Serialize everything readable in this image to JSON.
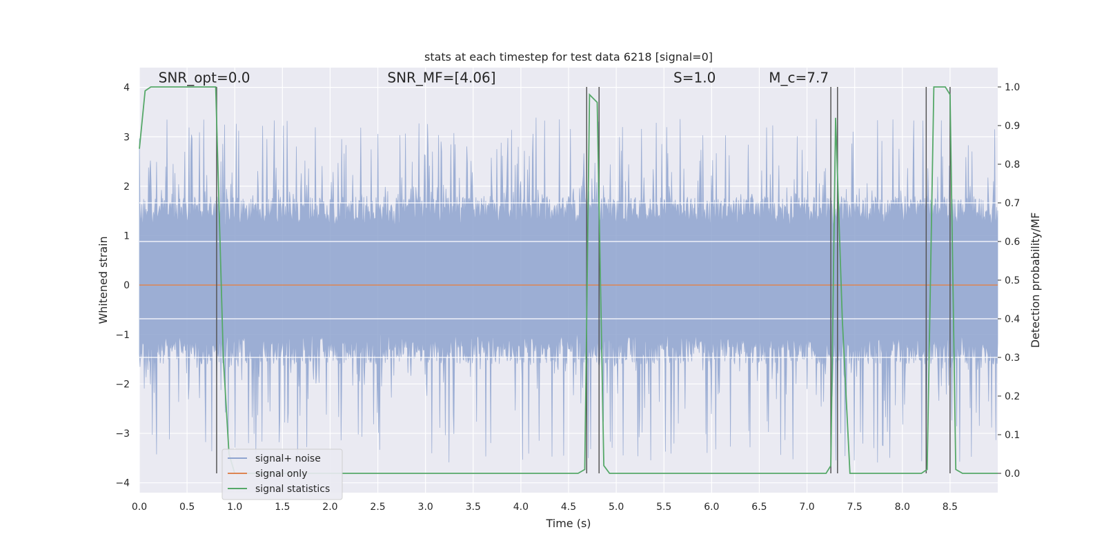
{
  "chart_data": {
    "type": "line",
    "title": "stats at each timestep for test data 6218 [signal=0]",
    "xlabel": "Time (s)",
    "ylabel_left": "Whitened strain",
    "ylabel_right": "Detection probability/MF",
    "xlim": [
      0.0,
      9.0
    ],
    "ylim_left": [
      -4.2,
      4.4
    ],
    "ylim_right": [
      -0.05,
      1.05
    ],
    "x_ticks": [
      "0.0",
      "0.5",
      "1.0",
      "1.5",
      "2.0",
      "2.5",
      "3.0",
      "3.5",
      "4.0",
      "4.5",
      "5.0",
      "5.5",
      "6.0",
      "6.5",
      "7.0",
      "7.5",
      "8.0",
      "8.5"
    ],
    "y_ticks_left": [
      "−4",
      "−3",
      "−2",
      "−1",
      "0",
      "1",
      "2",
      "3",
      "4"
    ],
    "y_ticks_right": [
      "0.0",
      "0.1",
      "0.2",
      "0.3",
      "0.4",
      "0.5",
      "0.6",
      "0.7",
      "0.8",
      "0.9",
      "1.0"
    ],
    "grid": true,
    "legend_position": "lower-left",
    "annotations": [
      {
        "text": "SNR_opt=0.0",
        "x": 0.2,
        "y": 4.1
      },
      {
        "text": "SNR_MF=[4.06]",
        "x": 2.6,
        "y": 4.1
      },
      {
        "text": "S=1.0",
        "x": 5.6,
        "y": 4.1
      },
      {
        "text": "M_c=7.7",
        "x": 6.6,
        "y": 4.1
      }
    ],
    "series": [
      {
        "name": "signal+ noise",
        "color": "#8fa4cf",
        "axis": "left",
        "kind": "noise",
        "core_range": [
          -1.5,
          1.7
        ],
        "peak_range": [
          -3.6,
          3.4
        ]
      },
      {
        "name": "signal only",
        "color": "#dd8452",
        "axis": "left",
        "x": [
          0.0,
          9.0
        ],
        "y": [
          0.0,
          0.0
        ]
      },
      {
        "name": "signal statistics",
        "color": "#55a868",
        "axis": "right",
        "x": [
          0.0,
          0.06,
          0.12,
          0.6,
          0.8,
          0.88,
          0.94,
          1.0,
          1.06,
          4.6,
          4.67,
          4.72,
          4.8,
          4.87,
          4.93,
          7.2,
          7.25,
          7.3,
          7.37,
          7.45,
          8.2,
          8.26,
          8.33,
          8.45,
          8.5,
          8.56,
          8.63,
          9.0
        ],
        "y": [
          0.84,
          0.99,
          1.0,
          1.0,
          1.0,
          0.3,
          0.05,
          0.0,
          0.0,
          0.0,
          0.01,
          0.98,
          0.96,
          0.02,
          0.0,
          0.0,
          0.02,
          0.92,
          0.4,
          0.0,
          0.0,
          0.01,
          1.0,
          1.0,
          0.98,
          0.01,
          0.0,
          0.0
        ]
      }
    ],
    "vlines": [
      0.81,
      4.69,
      4.82,
      7.25,
      7.32,
      8.25,
      8.5
    ],
    "vline_color": "#555555",
    "hlines_right": [
      0.3,
      0.4,
      0.6,
      0.7
    ]
  }
}
